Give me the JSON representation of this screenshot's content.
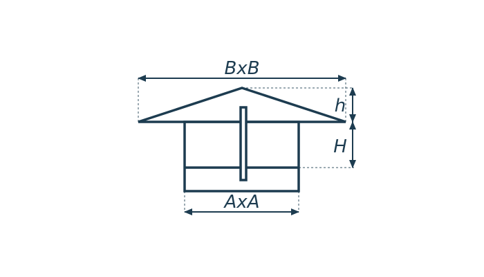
{
  "colors": {
    "stroke": "#1d3c50",
    "dash": "#3a5566",
    "background": "#ffffff"
  },
  "labels": {
    "top_width": "BxB",
    "bottom_width": "AxA",
    "cap_height": "h",
    "body_height": "H"
  }
}
